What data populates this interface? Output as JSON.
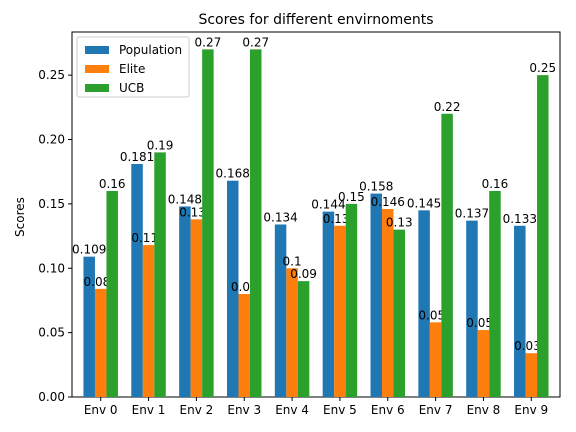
{
  "chart_data": {
    "type": "bar",
    "title": "Scores for different envirnoments",
    "xlabel": "",
    "ylabel": "Scores",
    "categories": [
      "Env 0",
      "Env 1",
      "Env 2",
      "Env 3",
      "Env 4",
      "Env 5",
      "Env 6",
      "Env 7",
      "Env 8",
      "Env 9"
    ],
    "series": [
      {
        "name": "Population",
        "color": "#1f77b4",
        "values": [
          0.109,
          0.181,
          0.148,
          0.168,
          0.134,
          0.144,
          0.158,
          0.145,
          0.137,
          0.133
        ],
        "labels": [
          "0.109",
          "0.181",
          "0.148",
          "0.168",
          "0.134",
          "0.144",
          "0.158",
          "0.145",
          "0.137",
          "0.133"
        ]
      },
      {
        "name": "Elite",
        "color": "#ff7f0e",
        "values": [
          0.084,
          0.118,
          0.138,
          0.08,
          0.1,
          0.133,
          0.146,
          0.058,
          0.052,
          0.034
        ],
        "labels": [
          "0.084",
          "0.118",
          "0.138",
          "0.08",
          "0.1",
          "0.133",
          "0.146",
          "0.058",
          "0.052",
          "0.034"
        ]
      },
      {
        "name": "UCB",
        "color": "#2ca02c",
        "values": [
          0.16,
          0.19,
          0.27,
          0.27,
          0.09,
          0.15,
          0.13,
          0.22,
          0.16,
          0.25
        ],
        "labels": [
          "0.16",
          "0.19",
          "0.27",
          "0.27",
          "0.09",
          "0.15",
          "0.13",
          "0.22",
          "0.16",
          "0.25"
        ]
      }
    ],
    "ylim": [
      0,
      0.2835
    ],
    "yticks": [
      0.0,
      0.05,
      0.1,
      0.15,
      0.2,
      0.25
    ],
    "ytick_labels": [
      "0.00",
      "0.05",
      "0.10",
      "0.15",
      "0.20",
      "0.25"
    ],
    "legend_position": "top-left",
    "grid": false
  }
}
